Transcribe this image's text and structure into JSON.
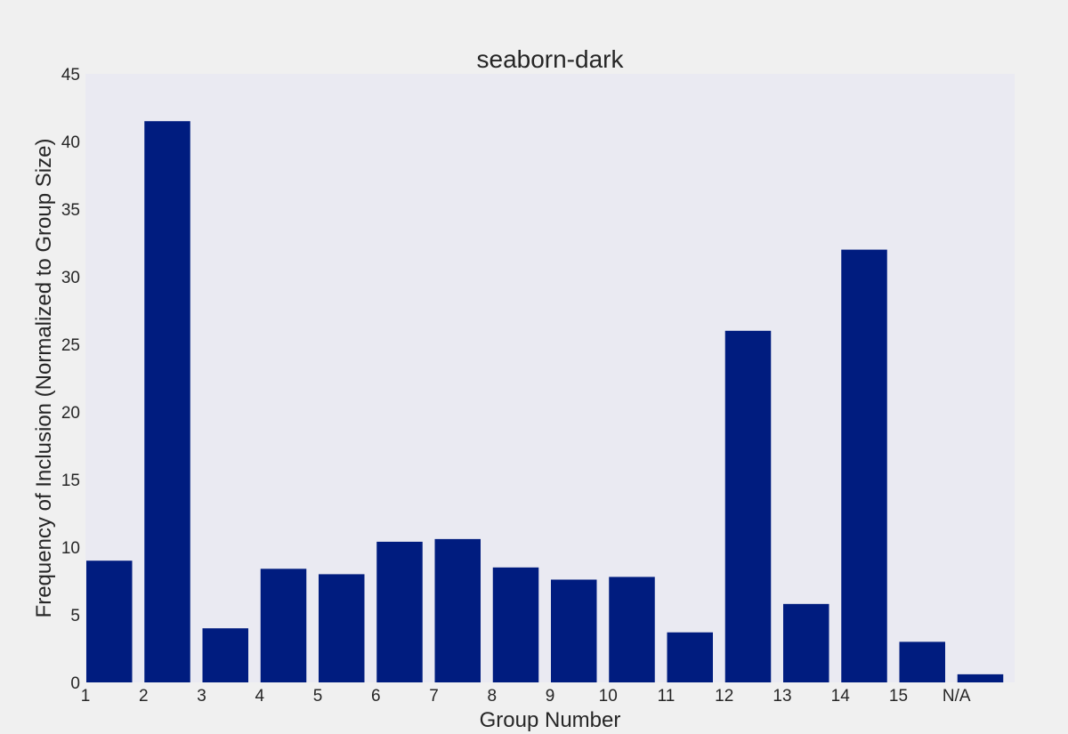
{
  "chart_data": {
    "type": "bar",
    "title": "seaborn-dark",
    "xlabel": "Group Number",
    "ylabel": "Frequency of Inclusion (Normalized to Group Size)",
    "categories": [
      "1",
      "2",
      "3",
      "4",
      "5",
      "6",
      "7",
      "8",
      "9",
      "10",
      "11",
      "12",
      "13",
      "14",
      "15",
      "N/A"
    ],
    "values": [
      9.0,
      41.5,
      4.0,
      8.4,
      8.0,
      10.4,
      10.6,
      8.5,
      7.6,
      7.8,
      3.7,
      26.0,
      5.8,
      32.0,
      3.0,
      0.6
    ],
    "ylim": [
      0,
      45
    ],
    "yticks": [
      "0",
      "5",
      "10",
      "15",
      "20",
      "25",
      "30",
      "35",
      "40",
      "45"
    ],
    "grid": false,
    "colors": {
      "bar": "#001c7f",
      "plot_background": "#eaeaf2",
      "figure_background": "#f0f0f0",
      "text": "#262626"
    }
  }
}
